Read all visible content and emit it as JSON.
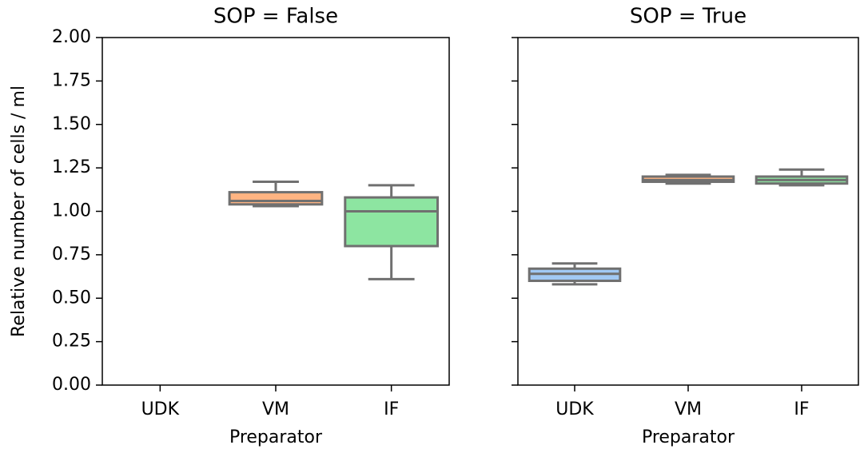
{
  "chart_data": [
    {
      "type": "box",
      "title": "SOP = False",
      "xlabel": "Preparator",
      "ylabel": "Relative number of cells / ml",
      "categories": [
        "UDK",
        "VM",
        "IF"
      ],
      "ylim": [
        0,
        2
      ],
      "yticks": [
        {
          "value": 0,
          "label": "0.00"
        },
        {
          "value": 0.25,
          "label": "0.25"
        },
        {
          "value": 0.5,
          "label": "0.50"
        },
        {
          "value": 0.75,
          "label": "0.75"
        },
        {
          "value": 1,
          "label": "1.00"
        },
        {
          "value": 1.25,
          "label": "1.25"
        },
        {
          "value": 1.5,
          "label": "1.50"
        },
        {
          "value": 1.75,
          "label": "1.75"
        },
        {
          "value": 2,
          "label": "2.00"
        }
      ],
      "boxes": [
        null,
        {
          "whislo": 1.03,
          "q1": 1.04,
          "med": 1.06,
          "q3": 1.11,
          "whishi": 1.17,
          "color": "#ffb482"
        },
        {
          "whislo": 0.61,
          "q1": 0.8,
          "med": 1.0,
          "q3": 1.08,
          "whishi": 1.15,
          "color": "#8de5a1"
        }
      ]
    },
    {
      "type": "box",
      "title": "SOP = True",
      "xlabel": "Preparator",
      "categories": [
        "UDK",
        "VM",
        "IF"
      ],
      "ylim": [
        0,
        2
      ],
      "yticks": [
        0,
        0.25,
        0.5,
        0.75,
        1,
        1.25,
        1.5,
        1.75,
        2
      ],
      "boxes": [
        {
          "whislo": 0.58,
          "q1": 0.6,
          "med": 0.64,
          "q3": 0.67,
          "whishi": 0.7,
          "color": "#a1c9f4"
        },
        {
          "whislo": 1.16,
          "q1": 1.17,
          "med": 1.18,
          "q3": 1.2,
          "whishi": 1.21,
          "color": "#ffb482"
        },
        {
          "whislo": 1.15,
          "q1": 1.16,
          "med": 1.18,
          "q3": 1.2,
          "whishi": 1.24,
          "color": "#8de5a1"
        }
      ]
    }
  ]
}
